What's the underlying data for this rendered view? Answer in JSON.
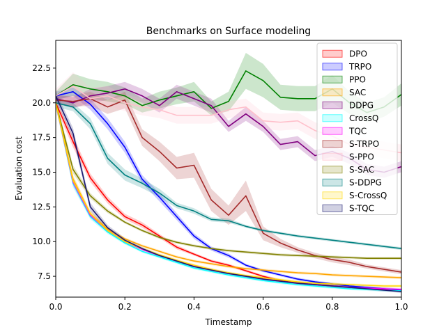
{
  "chart_data": {
    "type": "line",
    "title": "Benchmarks on Surface modeling",
    "xlabel": "Timestamp",
    "ylabel": "Evaluation cost",
    "xlim": [
      0.0,
      1.0
    ],
    "ylim": [
      6.0,
      24.5
    ],
    "x_ticks": [
      0.0,
      0.2,
      0.4,
      0.6,
      0.8,
      1.0
    ],
    "x_tick_labels": [
      "0.0",
      "0.2",
      "0.4",
      "0.6",
      "0.8",
      "1.0"
    ],
    "y_ticks": [
      7.5,
      10.0,
      12.5,
      15.0,
      17.5,
      20.0,
      22.5
    ],
    "y_tick_labels": [
      "7.5",
      "10.0",
      "12.5",
      "15.0",
      "17.5",
      "20.0",
      "22.5"
    ],
    "grid": false,
    "legend_position": "top-right",
    "x": [
      0.0,
      0.05,
      0.1,
      0.15,
      0.2,
      0.25,
      0.3,
      0.35,
      0.4,
      0.45,
      0.5,
      0.55,
      0.6,
      0.65,
      0.7,
      0.75,
      0.8,
      0.85,
      0.9,
      0.95,
      1.0
    ],
    "series": [
      {
        "name": "DPO",
        "color": "#ff0000",
        "values": [
          20.0,
          17.2,
          14.6,
          13.0,
          11.8,
          11.2,
          10.4,
          9.6,
          9.1,
          8.6,
          8.3,
          7.9,
          7.5,
          7.2,
          7.0,
          6.9,
          6.8,
          6.7,
          6.6,
          6.55,
          6.5
        ],
        "spread": [
          0.3,
          0.4,
          0.3,
          0.25,
          0.2,
          0.2,
          0.15,
          0.15,
          0.1,
          0.1,
          0.1,
          0.1,
          0.1,
          0.1,
          0.1,
          0.1,
          0.1,
          0.1,
          0.1,
          0.1,
          0.1
        ]
      },
      {
        "name": "TRPO",
        "color": "#0000ff",
        "values": [
          20.5,
          20.8,
          19.9,
          18.5,
          16.8,
          14.5,
          13.2,
          11.8,
          10.4,
          9.5,
          9.0,
          8.3,
          7.9,
          7.6,
          7.3,
          7.1,
          6.95,
          6.8,
          6.7,
          6.6,
          6.5
        ],
        "spread": [
          0.3,
          0.3,
          0.4,
          0.4,
          0.4,
          0.3,
          0.3,
          0.25,
          0.2,
          0.15,
          0.15,
          0.1,
          0.1,
          0.1,
          0.1,
          0.1,
          0.1,
          0.1,
          0.1,
          0.1,
          0.1
        ]
      },
      {
        "name": "PPO",
        "color": "#008000",
        "values": [
          20.5,
          21.3,
          21.0,
          20.8,
          20.5,
          19.8,
          20.2,
          20.5,
          20.8,
          19.6,
          20.1,
          22.3,
          21.6,
          20.4,
          20.3,
          20.3,
          21.0,
          20.0,
          19.3,
          19.7,
          20.6
        ],
        "spread": [
          0.3,
          0.8,
          0.7,
          0.7,
          0.6,
          0.5,
          0.6,
          0.6,
          0.7,
          0.5,
          0.7,
          1.3,
          1.2,
          0.9,
          0.9,
          0.9,
          1.0,
          0.8,
          0.7,
          0.7,
          0.8
        ]
      },
      {
        "name": "SAC",
        "color": "#ffa500",
        "values": [
          20.0,
          14.5,
          12.0,
          10.9,
          10.2,
          9.7,
          9.3,
          8.9,
          8.6,
          8.4,
          8.2,
          8.05,
          7.95,
          7.85,
          7.75,
          7.7,
          7.6,
          7.55,
          7.5,
          7.45,
          7.4
        ],
        "spread": [
          0.3,
          0.3,
          0.2,
          0.15,
          0.1,
          0.1,
          0.1,
          0.1,
          0.1,
          0.1,
          0.1,
          0.1,
          0.1,
          0.1,
          0.1,
          0.1,
          0.1,
          0.1,
          0.1,
          0.1,
          0.1
        ]
      },
      {
        "name": "DDPG",
        "color": "#800080",
        "values": [
          20.3,
          20.0,
          20.5,
          20.7,
          21.0,
          20.5,
          19.8,
          20.8,
          20.3,
          19.8,
          18.3,
          19.2,
          18.3,
          17.0,
          17.2,
          16.2,
          16.5,
          16.0,
          15.2,
          15.0,
          15.4
        ],
        "spread": [
          0.3,
          0.4,
          0.5,
          0.5,
          0.5,
          0.5,
          0.5,
          0.5,
          0.5,
          0.5,
          0.4,
          0.5,
          0.4,
          0.4,
          0.4,
          0.4,
          0.4,
          0.4,
          0.4,
          0.4,
          0.4
        ]
      },
      {
        "name": "CrossQ",
        "color": "#00ffff",
        "values": [
          20.0,
          14.2,
          11.8,
          10.7,
          9.9,
          9.3,
          8.9,
          8.5,
          8.1,
          7.85,
          7.6,
          7.4,
          7.2,
          7.05,
          6.9,
          6.8,
          6.7,
          6.6,
          6.55,
          6.5,
          6.45
        ],
        "spread": [
          0.3,
          0.3,
          0.2,
          0.15,
          0.1,
          0.1,
          0.1,
          0.1,
          0.1,
          0.1,
          0.1,
          0.1,
          0.1,
          0.1,
          0.1,
          0.1,
          0.1,
          0.1,
          0.1,
          0.1,
          0.1
        ]
      },
      {
        "name": "TQC",
        "color": "#ff00ff",
        "values": [
          20.0,
          14.3,
          11.9,
          10.8,
          10.0,
          9.45,
          9.0,
          8.6,
          8.25,
          7.95,
          7.7,
          7.5,
          7.3,
          7.15,
          7.0,
          6.9,
          6.8,
          6.7,
          6.65,
          6.6,
          6.55
        ],
        "spread": [
          0.3,
          0.3,
          0.2,
          0.15,
          0.1,
          0.1,
          0.1,
          0.1,
          0.1,
          0.1,
          0.1,
          0.1,
          0.1,
          0.1,
          0.1,
          0.1,
          0.1,
          0.1,
          0.1,
          0.1,
          0.1
        ]
      },
      {
        "name": "S-TRPO",
        "color": "#a52a2a",
        "values": [
          20.2,
          20.1,
          20.3,
          19.7,
          20.2,
          17.5,
          16.5,
          15.3,
          15.5,
          13.0,
          11.9,
          13.3,
          10.6,
          9.9,
          9.4,
          9.0,
          8.7,
          8.5,
          8.2,
          8.0,
          7.8
        ],
        "spread": [
          0.3,
          0.4,
          0.5,
          0.5,
          0.6,
          0.6,
          0.7,
          0.8,
          0.9,
          0.8,
          0.7,
          1.1,
          0.5,
          0.3,
          0.2,
          0.2,
          0.2,
          0.2,
          0.15,
          0.15,
          0.15
        ]
      },
      {
        "name": "S-PPO",
        "color": "#ffc0cb",
        "values": [
          20.5,
          21.2,
          20.3,
          20.5,
          20.0,
          19.7,
          19.5,
          19.1,
          19.1,
          19.1,
          19.5,
          19.7,
          18.7,
          18.6,
          18.7,
          18.0,
          17.6,
          17.0,
          16.8,
          16.6,
          16.4
        ],
        "spread": [
          0.5,
          1.0,
          0.8,
          0.7,
          0.6,
          0.6,
          0.6,
          0.6,
          0.6,
          0.6,
          0.6,
          0.6,
          0.6,
          0.6,
          0.6,
          0.6,
          0.6,
          0.6,
          0.6,
          0.6,
          0.6
        ]
      },
      {
        "name": "S-SAC",
        "color": "#808000",
        "values": [
          20.0,
          15.2,
          13.3,
          12.2,
          11.4,
          10.8,
          10.3,
          9.95,
          9.7,
          9.5,
          9.35,
          9.25,
          9.15,
          9.05,
          9.0,
          8.95,
          8.9,
          8.85,
          8.8,
          8.8,
          8.8
        ],
        "spread": [
          0.3,
          0.3,
          0.2,
          0.15,
          0.1,
          0.1,
          0.1,
          0.1,
          0.1,
          0.1,
          0.1,
          0.1,
          0.1,
          0.1,
          0.1,
          0.1,
          0.1,
          0.1,
          0.1,
          0.1,
          0.1
        ]
      },
      {
        "name": "S-DDPG",
        "color": "#008080",
        "values": [
          20.0,
          19.7,
          18.5,
          16.0,
          14.8,
          14.2,
          13.5,
          12.6,
          12.2,
          11.6,
          11.5,
          11.1,
          10.8,
          10.6,
          10.4,
          10.25,
          10.1,
          9.95,
          9.8,
          9.65,
          9.5
        ],
        "spread": [
          0.3,
          0.3,
          0.4,
          0.4,
          0.4,
          0.35,
          0.3,
          0.2,
          0.2,
          0.15,
          0.15,
          0.1,
          0.1,
          0.1,
          0.1,
          0.1,
          0.1,
          0.1,
          0.1,
          0.1,
          0.1
        ]
      },
      {
        "name": "S-CrossQ",
        "color": "#ffd700",
        "values": [
          20.0,
          14.4,
          12.0,
          10.8,
          10.0,
          9.5,
          9.05,
          8.65,
          8.3,
          8.0,
          7.75,
          7.55,
          7.4,
          7.25,
          7.1,
          7.0,
          6.95,
          6.9,
          6.85,
          6.8,
          6.8
        ],
        "spread": [
          0.3,
          0.3,
          0.2,
          0.15,
          0.1,
          0.1,
          0.1,
          0.1,
          0.1,
          0.1,
          0.1,
          0.1,
          0.1,
          0.1,
          0.1,
          0.1,
          0.1,
          0.1,
          0.1,
          0.1,
          0.1
        ]
      },
      {
        "name": "S-TQC",
        "color": "#191970",
        "values": [
          20.5,
          17.8,
          12.5,
          11.0,
          10.1,
          9.5,
          9.0,
          8.6,
          8.2,
          7.95,
          7.7,
          7.5,
          7.3,
          7.15,
          7.0,
          6.9,
          6.8,
          6.7,
          6.6,
          6.5,
          6.4
        ],
        "spread": [
          0.3,
          0.4,
          0.3,
          0.2,
          0.15,
          0.1,
          0.1,
          0.1,
          0.1,
          0.1,
          0.1,
          0.1,
          0.1,
          0.1,
          0.1,
          0.1,
          0.1,
          0.1,
          0.1,
          0.1,
          0.1
        ]
      }
    ]
  }
}
